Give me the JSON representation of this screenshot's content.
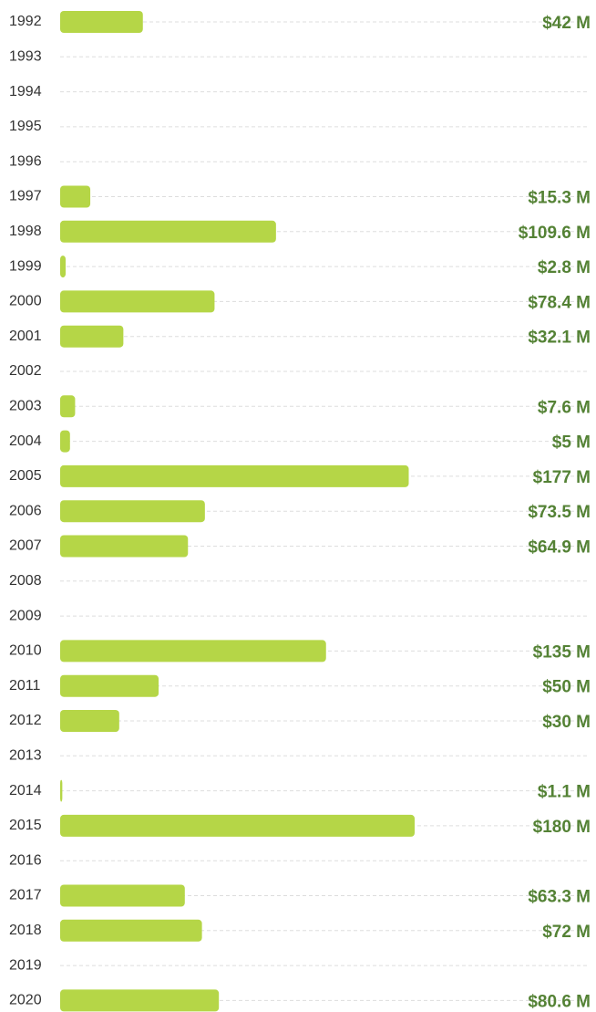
{
  "chart_data": {
    "type": "bar",
    "orientation": "horizontal",
    "color": "#b5d647",
    "label_color": "#548235",
    "grid": true,
    "categories": [
      "1992",
      "1993",
      "1994",
      "1995",
      "1996",
      "1997",
      "1998",
      "1999",
      "2000",
      "2001",
      "2002",
      "2003",
      "2004",
      "2005",
      "2006",
      "2007",
      "2008",
      "2009",
      "2010",
      "2011",
      "2012",
      "2013",
      "2014",
      "2015",
      "2016",
      "2017",
      "2018",
      "2019",
      "2020"
    ],
    "values": [
      42,
      null,
      null,
      null,
      null,
      15.3,
      109.6,
      2.8,
      78.4,
      32.1,
      null,
      7.6,
      5,
      177,
      73.5,
      64.9,
      null,
      null,
      135,
      50,
      30,
      null,
      1.1,
      180,
      null,
      63.3,
      72,
      null,
      80.6
    ],
    "value_labels": [
      "$42 M",
      null,
      null,
      null,
      null,
      "$15.3 M",
      "$109.6 M",
      "$2.8 M",
      "$78.4 M",
      "$32.1 M",
      null,
      "$7.6 M",
      "$5 M",
      "$177 M",
      "$73.5 M",
      "$64.9 M",
      null,
      null,
      "$135 M",
      "$50 M",
      "$30 M",
      null,
      "$1.1 M",
      "$180 M",
      null,
      "$63.3 M",
      "$72 M",
      null,
      "$80.6 M"
    ]
  }
}
